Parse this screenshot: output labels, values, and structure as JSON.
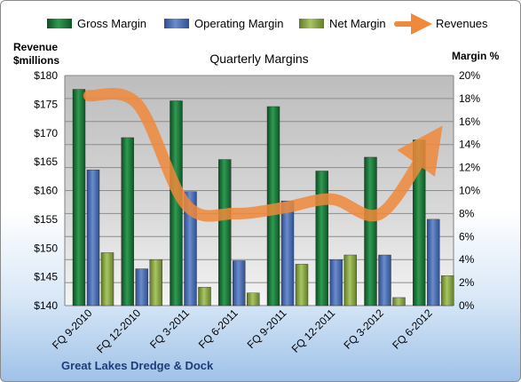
{
  "chart_data": {
    "type": "bar",
    "title": "Quarterly Margins",
    "company": "Great Lakes Dredge & Dock",
    "ylabel_left": [
      "Revenue",
      "$millions"
    ],
    "ylabel_right": "Margin %",
    "categories": [
      "FQ 9-2010",
      "FQ 12-2010",
      "FQ 3-2011",
      "FQ 6-2011",
      "FQ 9-2011",
      "FQ 12-2011",
      "FQ 3-2012",
      "FQ 6-2012"
    ],
    "ylim_left": [
      140,
      180
    ],
    "yticks_left": [
      "$140",
      "$145",
      "$150",
      "$155",
      "$160",
      "$165",
      "$170",
      "$175",
      "$180"
    ],
    "ylim_right": [
      0,
      20
    ],
    "yticks_right": [
      "0%",
      "2%",
      "4%",
      "6%",
      "8%",
      "10%",
      "12%",
      "14%",
      "16%",
      "18%",
      "20%"
    ],
    "legend_position": "top",
    "grid": true,
    "series": [
      {
        "name": "Gross Margin",
        "kind": "bar",
        "axis": "right",
        "color": "#1f7a3c",
        "values": [
          18.8,
          14.6,
          17.8,
          12.7,
          17.3,
          11.7,
          12.9,
          14.4
        ]
      },
      {
        "name": "Operating Margin",
        "kind": "bar",
        "axis": "right",
        "color": "#4a6fb5",
        "values": [
          11.8,
          3.2,
          9.9,
          3.9,
          9.1,
          4.0,
          4.4,
          7.5
        ]
      },
      {
        "name": "Net Margin",
        "kind": "bar",
        "axis": "right",
        "color": "#8aa84a",
        "values": [
          4.6,
          4.0,
          1.6,
          1.1,
          3.6,
          4.4,
          0.7,
          2.6
        ]
      },
      {
        "name": "Revenues",
        "kind": "line",
        "axis": "left",
        "color": "#f0893b",
        "values": [
          176.5,
          175.0,
          157.5,
          156.0,
          157.0,
          158.5,
          156.0,
          168.0
        ]
      }
    ]
  }
}
